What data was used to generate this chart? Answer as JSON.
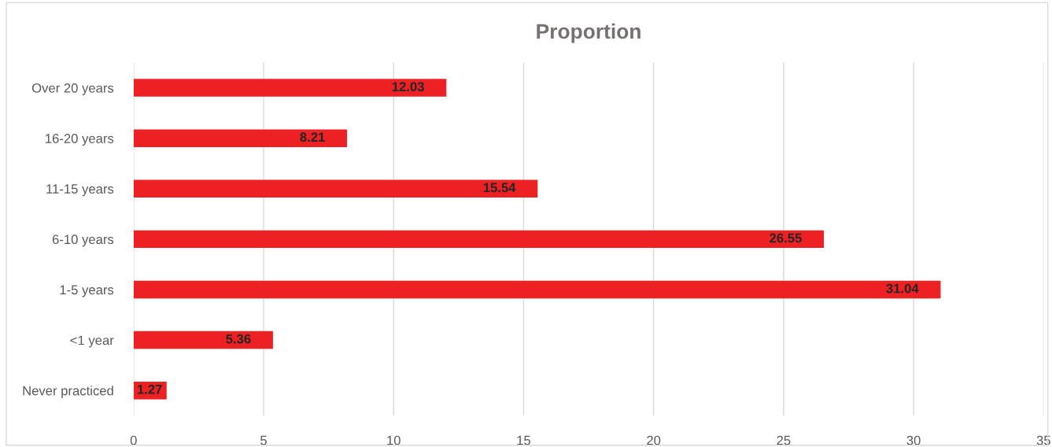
{
  "chart_data": {
    "type": "bar",
    "orientation": "horizontal",
    "title": "Proportion",
    "categories": [
      "Over 20 years",
      "16-20 years",
      "11-15 years",
      "6-10 years",
      "1-5 years",
      "<1 year",
      "Never practiced"
    ],
    "values": [
      12.03,
      8.21,
      15.54,
      26.55,
      31.04,
      5.36,
      1.27
    ],
    "color": "#ed2024",
    "xlim": [
      0,
      35
    ],
    "xticks": [
      0,
      5,
      10,
      15,
      20,
      25,
      30,
      35
    ],
    "grid": "x",
    "data_labels": true
  }
}
